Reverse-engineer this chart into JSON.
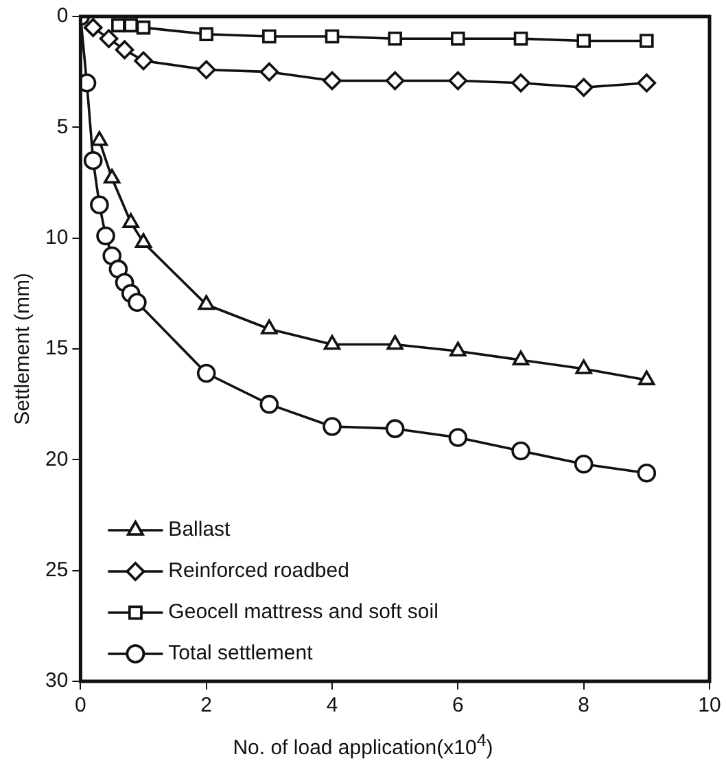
{
  "chart_data": {
    "type": "line",
    "xlabel": "No. of load application(x10$^{4}$)",
    "ylabel": "Settlement (mm)",
    "xlim": [
      0,
      10
    ],
    "xticks": [
      0,
      2,
      4,
      6,
      8,
      10
    ],
    "ylim": [
      30,
      0
    ],
    "yticks": [
      0,
      5,
      10,
      15,
      20,
      25,
      30
    ],
    "grid": false,
    "legend": "bottom left",
    "line_style": "solid",
    "series": [
      {
        "name": "Ballast",
        "color": "#111111",
        "marker": "triangle",
        "x": [
          0.3,
          0.5,
          0.8,
          1,
          2,
          3,
          4,
          5,
          6,
          7,
          8,
          9
        ],
        "values": [
          5.6,
          7.3,
          9.3,
          10.2,
          13.0,
          14.1,
          14.8,
          14.8,
          15.1,
          15.5,
          15.9,
          16.4
        ]
      },
      {
        "name": "Reinforced roadbed",
        "color": "#111111",
        "marker": "diamond",
        "x": [
          0.2,
          0.45,
          0.7,
          1,
          2,
          3,
          4,
          5,
          6,
          7,
          8,
          9
        ],
        "values": [
          0.5,
          1.0,
          1.5,
          2.0,
          2.4,
          2.5,
          2.9,
          2.9,
          2.9,
          3.0,
          3.2,
          3.0
        ]
      },
      {
        "name": "Geocell mattress and soft soil",
        "color": "#111111",
        "marker": "square",
        "x": [
          0.6,
          0.8,
          1,
          2,
          3,
          4,
          5,
          6,
          7,
          8,
          9
        ],
        "values": [
          0.4,
          0.4,
          0.5,
          0.8,
          0.9,
          0.9,
          1.0,
          1.0,
          1.0,
          1.1,
          1.1
        ]
      },
      {
        "name": "Total settlement",
        "color": "#111111",
        "marker": "circle",
        "x": [
          0,
          0.1,
          0.2,
          0.3,
          0.4,
          0.5,
          0.6,
          0.7,
          0.8,
          0.9,
          2,
          3,
          4,
          5,
          6,
          7,
          8,
          9
        ],
        "values": [
          0,
          3.0,
          6.5,
          8.5,
          9.9,
          10.8,
          11.4,
          12.0,
          12.5,
          12.9,
          16.1,
          17.5,
          18.5,
          18.6,
          19.0,
          19.6,
          20.2,
          20.6
        ]
      }
    ]
  }
}
